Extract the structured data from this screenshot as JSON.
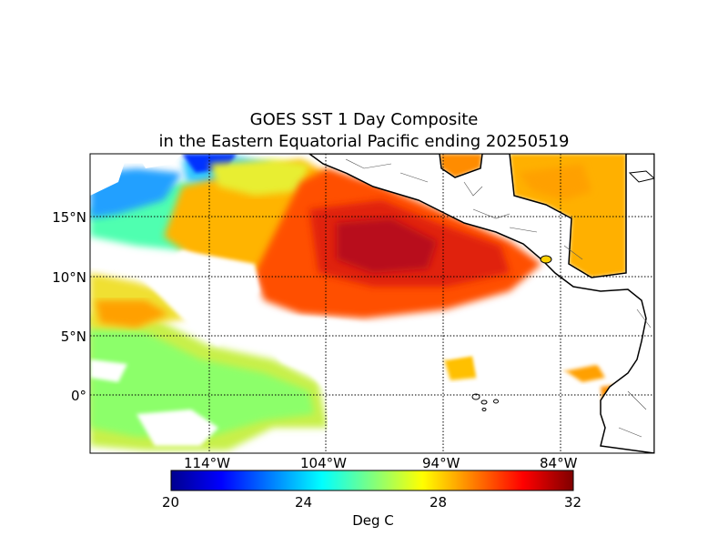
{
  "title_line1": "GOES SST 1 Day Composite",
  "title_line2": "in the Eastern Equatorial Pacific ending 20250519",
  "lat_ticks": [
    "15°N",
    "10°N",
    "5°N",
    "0°"
  ],
  "lon_ticks": [
    "114°W",
    "104°W",
    "94°W",
    "84°W"
  ],
  "colorbar": {
    "ticks": [
      "20",
      "24",
      "28",
      "32"
    ],
    "label": "Deg C",
    "colormap": "jet",
    "range": [
      20,
      32
    ]
  },
  "map": {
    "lat_range": [
      -5,
      20
    ],
    "lon_range": [
      -124,
      -76
    ],
    "grid": "dotted",
    "land_color": "#ffffff",
    "cloud_gap_color": "#ffffff",
    "colors": {
      "warmest": "#c8141e",
      "warm": "#ff4a00",
      "orange": "#ff9a00",
      "yellow": "#f0e628",
      "green": "#9cff5c",
      "cyan": "#3cffc0",
      "blue": "#0072ff",
      "dark_blue": "#0000c8"
    }
  }
}
